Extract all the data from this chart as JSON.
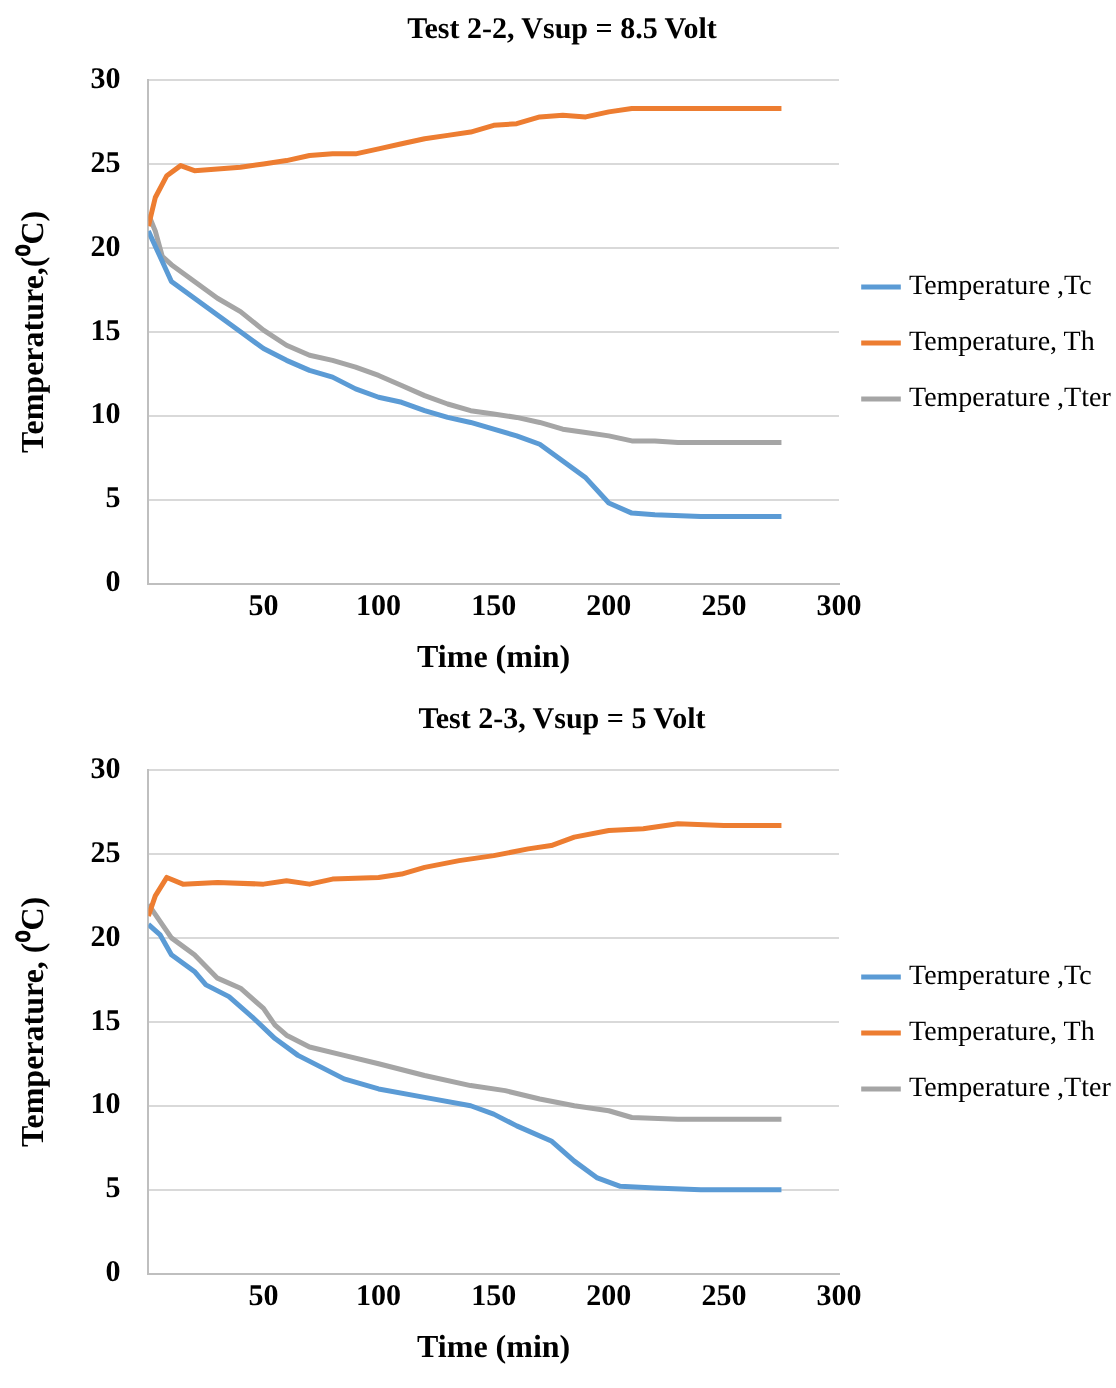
{
  "chart_data": [
    {
      "type": "line",
      "title": "Test 2-2, Vsup = 8.5 Volt",
      "xlabel": "Time (min)",
      "ylabel": "Temperature,(⁰C)",
      "xlim": [
        0,
        300
      ],
      "xticks": [
        50,
        100,
        150,
        200,
        250,
        300
      ],
      "ylim": [
        0,
        30
      ],
      "yticks": [
        0,
        5,
        10,
        15,
        20,
        25,
        30
      ],
      "grid": "y",
      "legend": "right",
      "marker": "none",
      "line_style": "solid",
      "series": [
        {
          "name": "Temperature ,Tc",
          "color": "#5b9bd5",
          "x": [
            0,
            5,
            10,
            20,
            30,
            40,
            50,
            60,
            70,
            80,
            90,
            100,
            110,
            120,
            130,
            140,
            150,
            160,
            170,
            180,
            190,
            200,
            210,
            220,
            240,
            260,
            275
          ],
          "values": [
            21,
            19.5,
            18,
            17,
            16,
            15,
            14,
            13.3,
            12.7,
            12.3,
            11.6,
            11.1,
            10.8,
            10.3,
            9.9,
            9.6,
            9.2,
            8.8,
            8.3,
            7.3,
            6.3,
            4.8,
            4.2,
            4.1,
            4,
            4,
            4
          ]
        },
        {
          "name": "Temperature, Th",
          "color": "#ed7d31",
          "x": [
            0,
            3,
            8,
            14,
            20,
            30,
            40,
            50,
            60,
            70,
            80,
            90,
            100,
            110,
            120,
            130,
            140,
            150,
            160,
            170,
            180,
            190,
            200,
            210,
            230,
            250,
            275
          ],
          "values": [
            21.3,
            23,
            24.3,
            24.9,
            24.6,
            24.7,
            24.8,
            25,
            25.2,
            25.5,
            25.6,
            25.6,
            25.9,
            26.2,
            26.5,
            26.7,
            26.9,
            27.3,
            27.4,
            27.8,
            27.9,
            27.8,
            28.1,
            28.3,
            28.3,
            28.3,
            28.3
          ]
        },
        {
          "name": "Temperature ,Tter",
          "color": "#a5a5a5",
          "x": [
            0,
            3,
            6,
            10,
            20,
            30,
            40,
            50,
            60,
            70,
            80,
            90,
            100,
            110,
            120,
            130,
            140,
            150,
            160,
            170,
            180,
            190,
            200,
            210,
            220,
            230,
            250,
            275
          ],
          "values": [
            22,
            21,
            19.5,
            19,
            18,
            17,
            16.2,
            15.1,
            14.2,
            13.6,
            13.3,
            12.9,
            12.4,
            11.8,
            11.2,
            10.7,
            10.3,
            10.1,
            9.9,
            9.6,
            9.2,
            9,
            8.8,
            8.5,
            8.5,
            8.4,
            8.4,
            8.4
          ]
        }
      ]
    },
    {
      "type": "line",
      "title": "Test 2-3, Vsup = 5 Volt",
      "xlabel": "Time (min)",
      "ylabel": "Temperature, (⁰C)",
      "xlim": [
        0,
        300
      ],
      "xticks": [
        50,
        100,
        150,
        200,
        250,
        300
      ],
      "ylim": [
        0,
        30
      ],
      "yticks": [
        0,
        5,
        10,
        15,
        20,
        25,
        30
      ],
      "grid": "y",
      "legend": "right",
      "marker": "none",
      "line_style": "solid",
      "series": [
        {
          "name": "Temperature ,Tc",
          "color": "#5b9bd5",
          "x": [
            0,
            5,
            10,
            20,
            25,
            35,
            45,
            55,
            65,
            75,
            85,
            100,
            120,
            140,
            150,
            160,
            175,
            185,
            195,
            205,
            220,
            240,
            260,
            275
          ],
          "values": [
            20.8,
            20.2,
            19,
            18,
            17.2,
            16.5,
            15.3,
            14,
            13,
            12.3,
            11.6,
            11,
            10.5,
            10,
            9.5,
            8.8,
            7.9,
            6.7,
            5.7,
            5.2,
            5.1,
            5,
            5,
            5
          ]
        },
        {
          "name": "Temperature, Th",
          "color": "#ed7d31",
          "x": [
            0,
            3,
            8,
            15,
            30,
            50,
            60,
            70,
            80,
            100,
            110,
            120,
            135,
            150,
            165,
            175,
            185,
            200,
            215,
            230,
            250,
            275
          ],
          "values": [
            21.3,
            22.5,
            23.6,
            23.2,
            23.3,
            23.2,
            23.4,
            23.2,
            23.5,
            23.6,
            23.8,
            24.2,
            24.6,
            24.9,
            25.3,
            25.5,
            26,
            26.4,
            26.5,
            26.8,
            26.7,
            26.7
          ]
        },
        {
          "name": "Temperature ,Tter",
          "color": "#a5a5a5",
          "x": [
            0,
            5,
            10,
            20,
            25,
            30,
            40,
            50,
            55,
            60,
            70,
            85,
            100,
            120,
            140,
            155,
            170,
            185,
            200,
            210,
            230,
            250,
            275
          ],
          "values": [
            22,
            21,
            20,
            19,
            18.3,
            17.6,
            17,
            15.8,
            14.8,
            14.2,
            13.5,
            13,
            12.5,
            11.8,
            11.2,
            10.9,
            10.4,
            10,
            9.7,
            9.3,
            9.2,
            9.2,
            9.2
          ]
        }
      ]
    }
  ]
}
